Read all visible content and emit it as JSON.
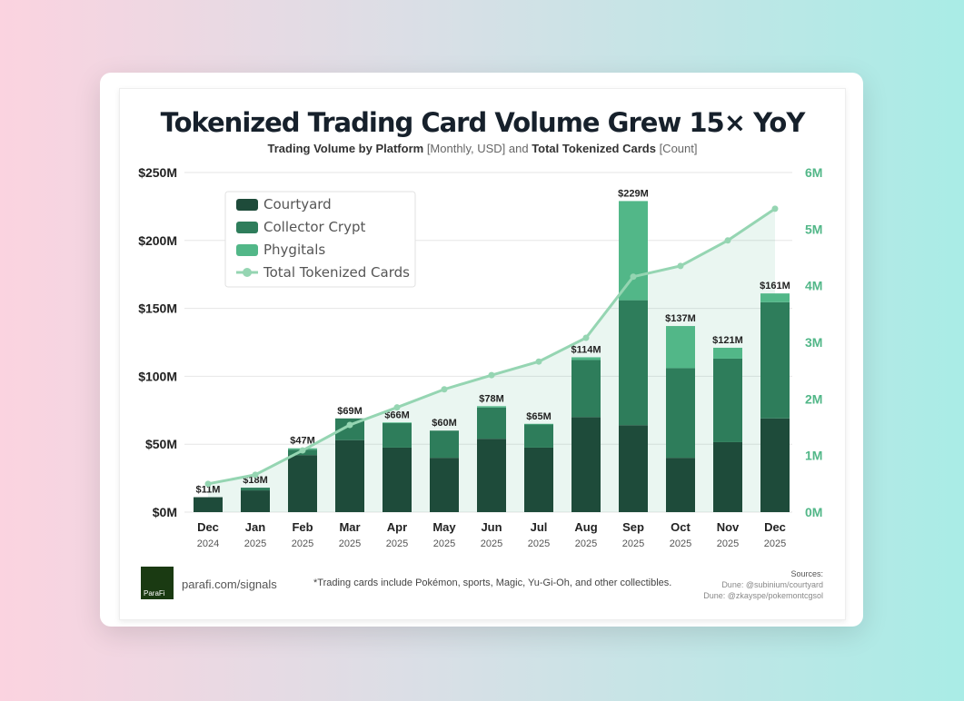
{
  "chart_data": {
    "type": "bar",
    "title": "Tokenized Trading Card Volume Grew 15× YoY",
    "subtitle": {
      "a": "Trading Volume by Platform",
      "b": " [Monthly, USD] and ",
      "c": "Total Tokenized Cards",
      "d": " [Count]"
    },
    "categories": [
      "Dec",
      "Jan",
      "Feb",
      "Mar",
      "Apr",
      "May",
      "Jun",
      "Jul",
      "Aug",
      "Sep",
      "Oct",
      "Nov",
      "Dec"
    ],
    "years": [
      "2024",
      "2025",
      "2025",
      "2025",
      "2025",
      "2025",
      "2025",
      "2025",
      "2025",
      "2025",
      "2025",
      "2025",
      "2025"
    ],
    "series": [
      {
        "name": "Courtyard",
        "color": "#1e4b3a",
        "values": [
          11,
          16,
          42,
          53,
          47.5,
          40,
          54,
          47.5,
          70,
          64,
          40,
          51.5,
          69
        ]
      },
      {
        "name": "Collector Crypt",
        "color": "#2e7d5b",
        "values": [
          0,
          2,
          4,
          16,
          18,
          20,
          23,
          17,
          42,
          92,
          66,
          61.5,
          85.5
        ]
      },
      {
        "name": "Phygitals",
        "color": "#52b788",
        "values": [
          0,
          0,
          1,
          0,
          0.5,
          0,
          1,
          0.5,
          2,
          73,
          31,
          8,
          6.5
        ]
      }
    ],
    "totals": [
      "$11M",
      "$18M",
      "$47M",
      "$69M",
      "$66M",
      "$60M",
      "$78M",
      "$65M",
      "$114M",
      "$229M",
      "$137M",
      "$121M",
      "$161M"
    ],
    "total_values": [
      11,
      18,
      47,
      69,
      66,
      60,
      78,
      65,
      114,
      229,
      137,
      121,
      161
    ],
    "line": {
      "name": "Total Tokenized Cards",
      "color": "#95d5b2",
      "values": [
        0.5,
        0.66,
        1.09,
        1.54,
        1.85,
        2.17,
        2.42,
        2.66,
        3.08,
        4.16,
        4.35,
        4.8,
        5.36
      ]
    },
    "ylim": [
      0,
      250
    ],
    "y2lim": [
      0,
      6
    ],
    "yticks": [
      "$0M",
      "$50M",
      "$100M",
      "$150M",
      "$200M",
      "$250M"
    ],
    "y2ticks": [
      "0M",
      "1M",
      "2M",
      "3M",
      "4M",
      "5M",
      "6M"
    ],
    "legend": "top-left"
  },
  "footer": {
    "logo": "ParaFi",
    "link": "parafi.com/signals",
    "note": "*Trading cards include Pokémon, sports, Magic, Yu-Gi-Oh, and other collectibles.",
    "sources": [
      "Sources:",
      "Dune: @subinium/courtyard",
      "Dune: @zkayspe/pokemontcgsol"
    ]
  }
}
